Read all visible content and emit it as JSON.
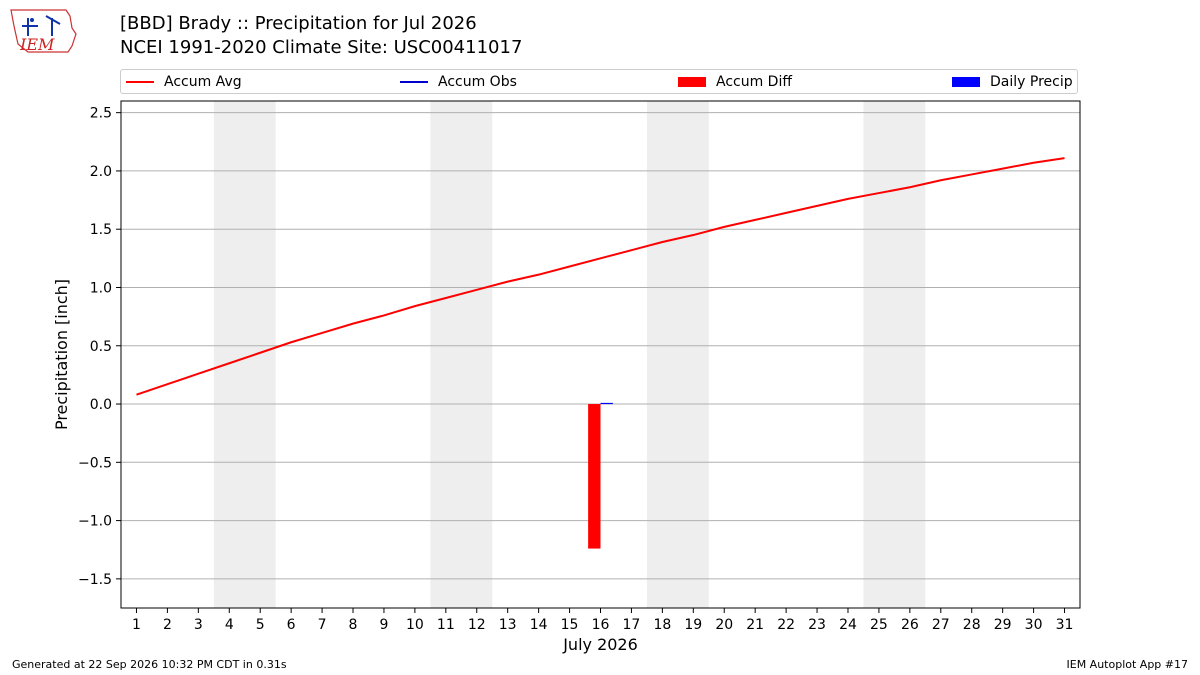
{
  "header": {
    "title_line1": "[BBD] Brady :: Precipitation for Jul 2026",
    "title_line2": "NCEI 1991-2020 Climate Site: USC00411017",
    "logo_text": "IEM"
  },
  "footer": {
    "generated": "Generated at 22 Sep 2026 10:32 PM CDT in 0.31s",
    "app": "IEM Autoplot App #17"
  },
  "colors": {
    "avg": "#ff0000",
    "obs": "#0000cc",
    "diff": "#ff0000",
    "daily": "#0000ff",
    "weekend": "#eeeeee",
    "grid": "#b0b0b0"
  },
  "chart_data": {
    "type": "line",
    "xlabel": "July 2026",
    "ylabel": "Precipitation [inch]",
    "ylim": [
      -1.75,
      2.6
    ],
    "xlim": [
      0.5,
      31.5
    ],
    "yticks": [
      -1.5,
      -1.0,
      -0.5,
      0.0,
      0.5,
      1.0,
      1.5,
      2.0,
      2.5
    ],
    "ytick_labels": [
      "−1.5",
      "−1.0",
      "−0.5",
      "0.0",
      "0.5",
      "1.0",
      "1.5",
      "2.0",
      "2.5"
    ],
    "x": [
      1,
      2,
      3,
      4,
      5,
      6,
      7,
      8,
      9,
      10,
      11,
      12,
      13,
      14,
      15,
      16,
      17,
      18,
      19,
      20,
      21,
      22,
      23,
      24,
      25,
      26,
      27,
      28,
      29,
      30,
      31
    ],
    "xtick_labels": [
      "1",
      "2",
      "3",
      "4",
      "5",
      "6",
      "7",
      "8",
      "9",
      "10",
      "11",
      "12",
      "13",
      "14",
      "15",
      "16",
      "17",
      "18",
      "19",
      "20",
      "21",
      "22",
      "23",
      "24",
      "25",
      "26",
      "27",
      "28",
      "29",
      "30",
      "31"
    ],
    "grid": true,
    "weekend_shading": [
      [
        3.5,
        5.5
      ],
      [
        10.5,
        12.5
      ],
      [
        17.5,
        19.5
      ],
      [
        24.5,
        26.5
      ]
    ],
    "legend": [
      {
        "label": "Accum Avg",
        "style": "line",
        "color": "#ff0000"
      },
      {
        "label": "Accum Obs",
        "style": "line",
        "color": "#0000cc"
      },
      {
        "label": "Accum Diff",
        "style": "box",
        "color": "#ff0000"
      },
      {
        "label": "Daily Precip",
        "style": "box",
        "color": "#0000ff"
      }
    ],
    "series": [
      {
        "name": "Accum Avg",
        "values": [
          0.08,
          0.17,
          0.26,
          0.35,
          0.44,
          0.53,
          0.61,
          0.69,
          0.76,
          0.84,
          0.91,
          0.98,
          1.05,
          1.11,
          1.18,
          1.25,
          1.32,
          1.39,
          1.45,
          1.52,
          1.58,
          1.64,
          1.7,
          1.76,
          1.81,
          1.86,
          1.92,
          1.97,
          2.02,
          2.07,
          2.11
        ]
      },
      {
        "name": "Accum Diff",
        "bars": [
          {
            "x": 16,
            "value": -1.24
          }
        ]
      },
      {
        "name": "Daily Precip",
        "bars": [
          {
            "x": 16,
            "value": 0.01
          }
        ]
      }
    ]
  }
}
